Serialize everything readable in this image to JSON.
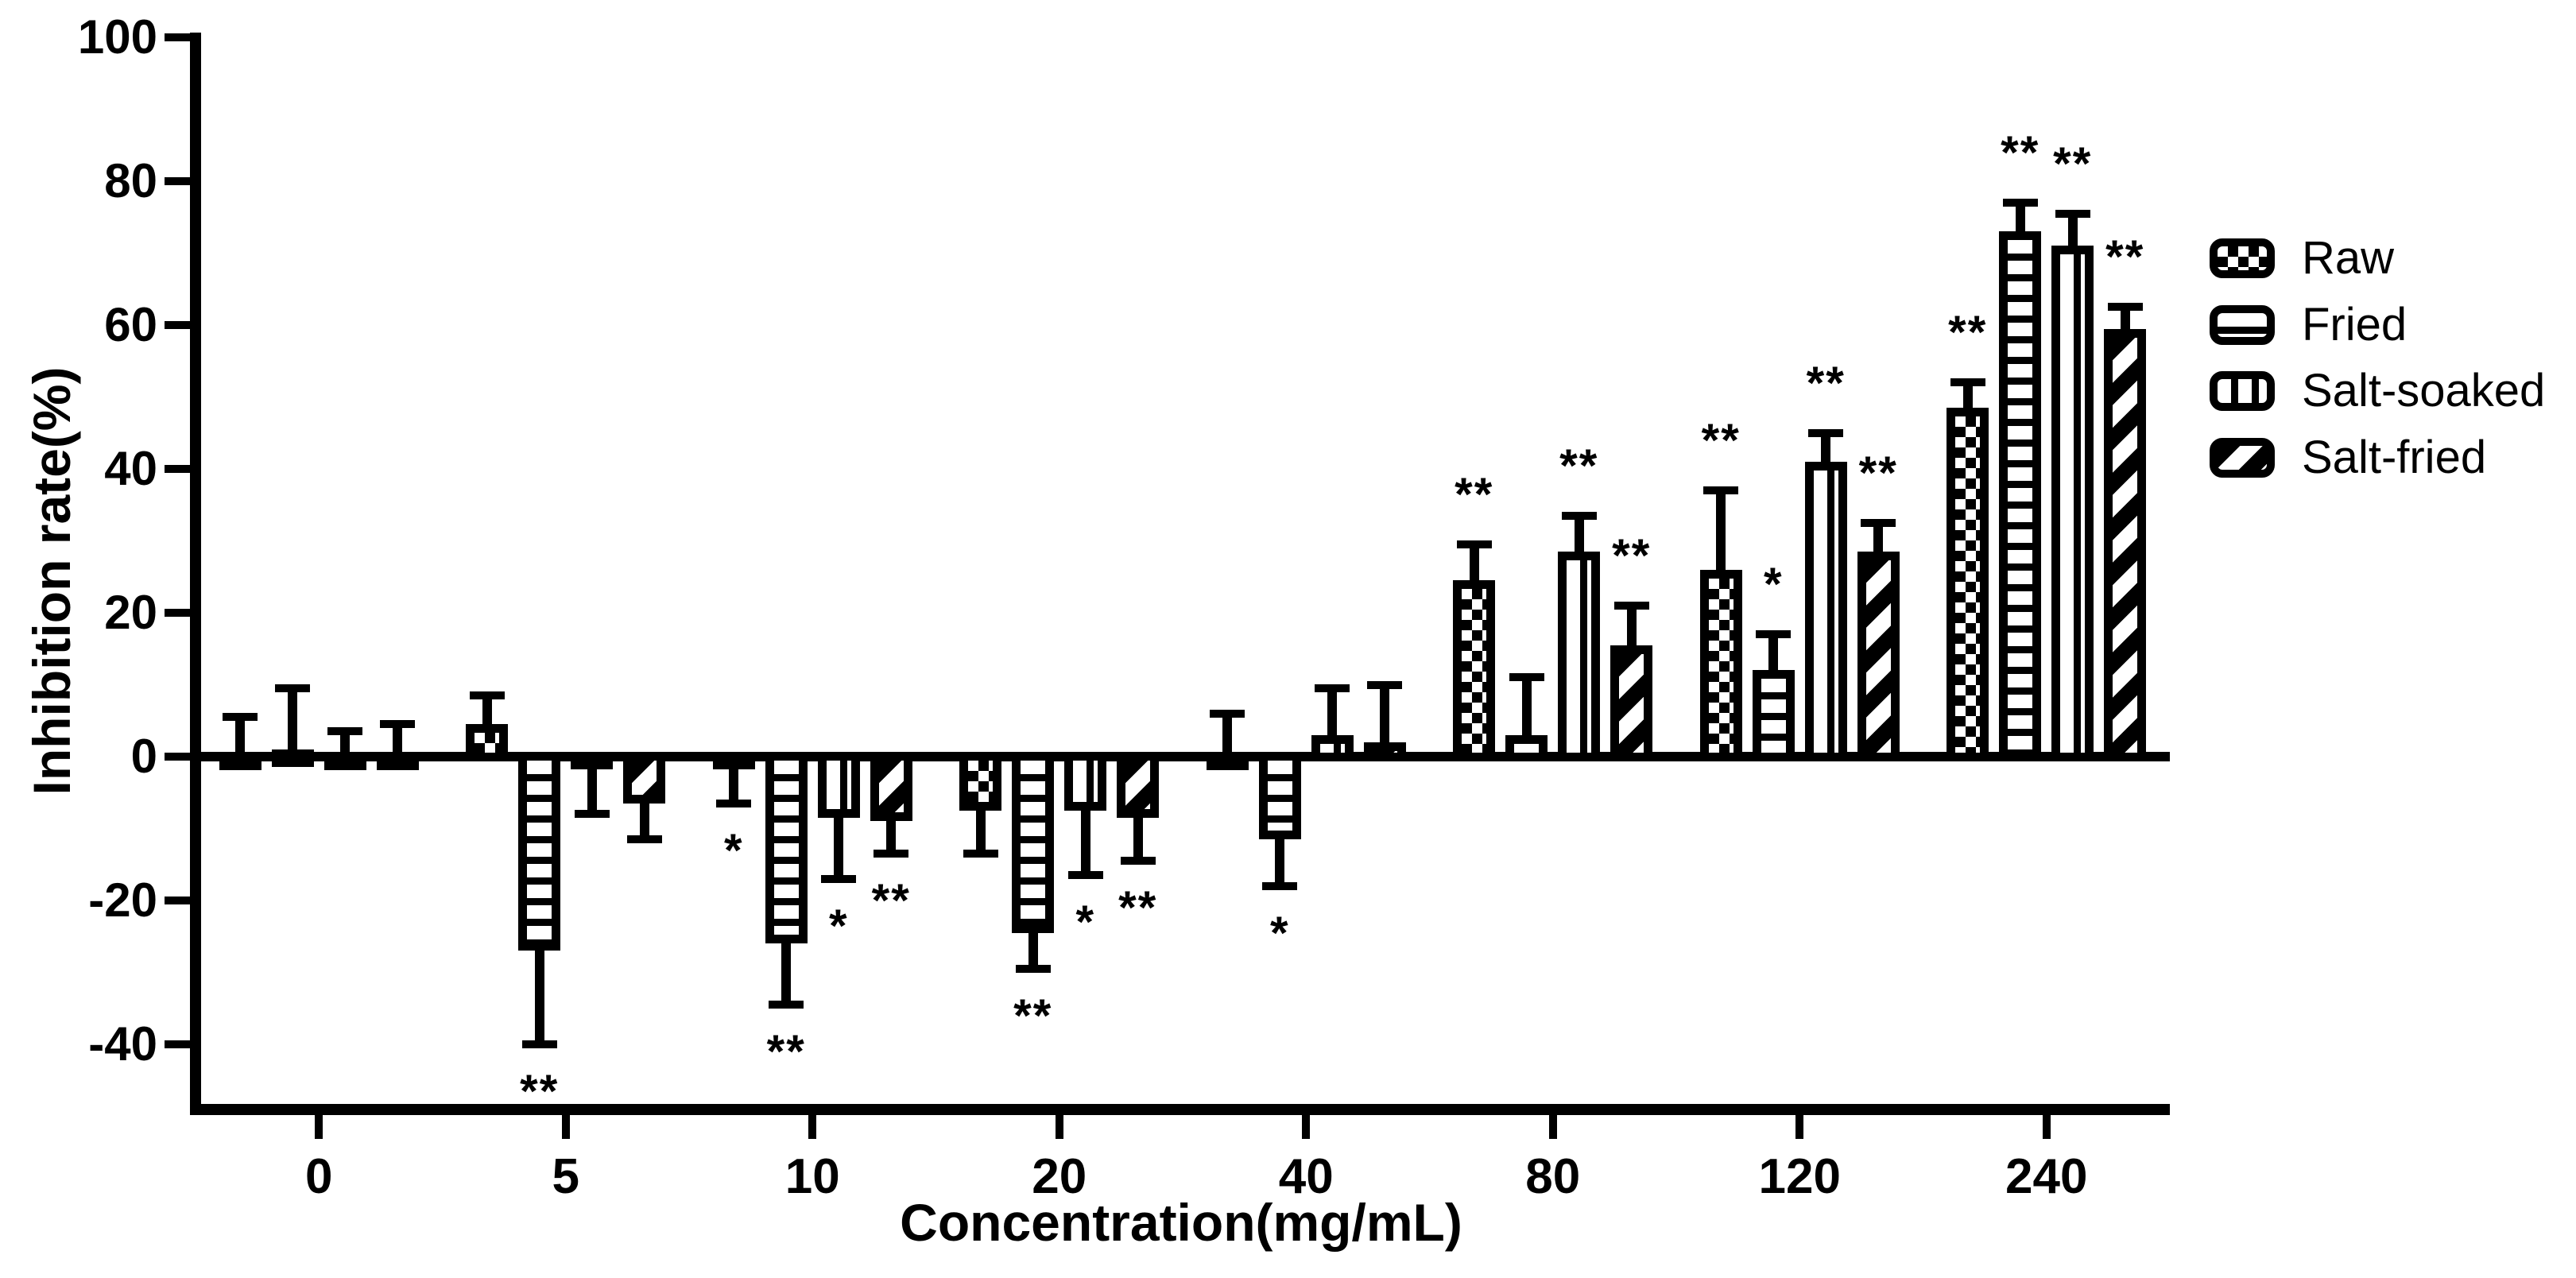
{
  "colors": {
    "ink": "#000000",
    "background": "#ffffff"
  },
  "chart_data": {
    "type": "bar",
    "title": "",
    "xlabel": "Concentration(mg/mL)",
    "ylabel": "Inhibition rate(%)",
    "categories": [
      "0",
      "5",
      "10",
      "20",
      "40",
      "80",
      "120",
      "240"
    ],
    "ylim": [
      -50,
      100
    ],
    "yticks": [
      100,
      80,
      60,
      40,
      20,
      0,
      -20,
      -40
    ],
    "grid": false,
    "legend_position": "right",
    "error_bar_style": "one-sided capped whiskers",
    "series": [
      {
        "name": "Raw",
        "pattern": "checker",
        "values": [
          0.5,
          4.5,
          -0.5,
          -7.5,
          0.5,
          24.5,
          26,
          48.5
        ],
        "errors": [
          5,
          4,
          6,
          6,
          5.5,
          5,
          11,
          3.5
        ],
        "sig": [
          "",
          "",
          "*",
          "",
          "",
          "**",
          "**",
          "**"
        ]
      },
      {
        "name": "Fried",
        "pattern": "hlines",
        "values": [
          1,
          -27,
          -26,
          -24.5,
          -11.5,
          3,
          12,
          73
        ],
        "errors": [
          8.5,
          13,
          8.5,
          5,
          6.5,
          8,
          5,
          4
        ],
        "sig": [
          "",
          "**",
          "**",
          "**",
          "*",
          "",
          "*",
          "**"
        ]
      },
      {
        "name": "Salt-soaked",
        "pattern": "vlines",
        "values": [
          0.5,
          -1.5,
          -8.5,
          -7.5,
          3,
          28.5,
          41,
          71
        ],
        "errors": [
          3,
          6.5,
          8.5,
          9,
          6.5,
          5,
          4,
          4.5
        ],
        "sig": [
          "",
          "",
          "*",
          "*",
          "",
          "**",
          "**",
          "**"
        ]
      },
      {
        "name": "Salt-fried",
        "pattern": "dlines",
        "values": [
          0.5,
          -6.5,
          -9,
          -8.5,
          2,
          15.5,
          28.5,
          59.5
        ],
        "errors": [
          4,
          5,
          4.5,
          6,
          8,
          5.5,
          4,
          3
        ],
        "sig": [
          "",
          "",
          "**",
          "**",
          "",
          "**",
          "**",
          "**"
        ]
      }
    ]
  },
  "legend": {
    "entries": [
      "Raw",
      "Fried",
      "Salt-soaked",
      "Salt-fried"
    ]
  }
}
